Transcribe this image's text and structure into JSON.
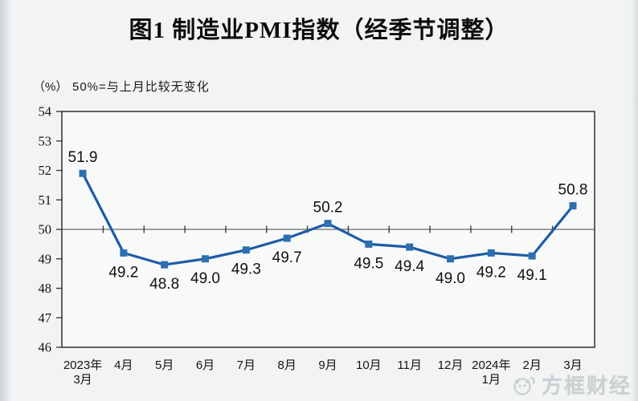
{
  "page": {
    "title": "图1  制造业PMI指数（经季节调整）",
    "unit_label": "（%）",
    "reference_note": "50%=与上月比较无变化"
  },
  "watermark": {
    "text": "方框财经",
    "icon": "panda-logo-icon"
  },
  "chart_data": {
    "type": "line",
    "title": "图1 制造业PMI指数（经季节调整）",
    "unit": "%",
    "reference_line": 50,
    "reference_note": "50%=与上月比较无变化",
    "categories": [
      [
        "2023年",
        "3月"
      ],
      [
        "4月"
      ],
      [
        "5月"
      ],
      [
        "6月"
      ],
      [
        "7月"
      ],
      [
        "8月"
      ],
      [
        "9月"
      ],
      [
        "10月"
      ],
      [
        "11月"
      ],
      [
        "12月"
      ],
      [
        "2024年",
        "1月"
      ],
      [
        "2月"
      ],
      [
        "3月"
      ]
    ],
    "values": [
      51.9,
      49.2,
      48.8,
      49.0,
      49.3,
      49.7,
      50.2,
      49.5,
      49.4,
      49.0,
      49.2,
      49.1,
      50.8
    ],
    "label_positions": [
      "above",
      "below",
      "below",
      "below",
      "below",
      "below",
      "above",
      "below",
      "below",
      "below",
      "below",
      "below",
      "above"
    ],
    "ylim": [
      46,
      54
    ],
    "ytick_step": 1,
    "grid": false,
    "legend": false,
    "colors": {
      "line": "#1d5ca7",
      "marker": "#2e6fb0",
      "reference_line": "#808080",
      "axis_border": "#3c3c3c",
      "tick": "#3c3c3c",
      "plot_fill": "#f8fafa",
      "label_text": "#111111"
    }
  }
}
